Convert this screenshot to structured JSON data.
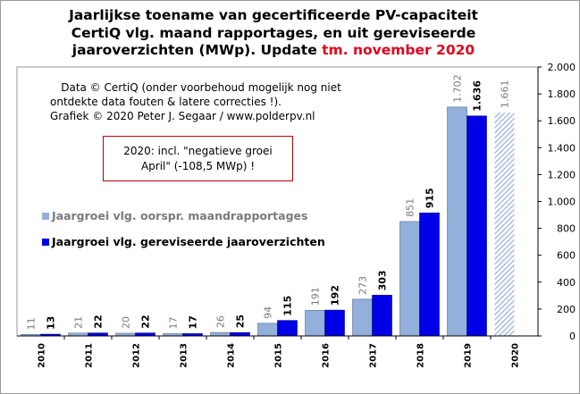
{
  "title": {
    "line1": "Jaarlijkse toename van gecertificeerde PV-capaciteit",
    "line2": "CertiQ vlg. maand rapportages, en uit gereviseerde",
    "line3_black": "jaaroverzichten (MWp). Update ",
    "line3_red": "tm. november 2020"
  },
  "credit": {
    "line1": "Data © CertiQ (onder voorbehoud mogelijk nog niet",
    "line2": "ontdekte data fouten & latere correcties !).",
    "line3": "Grafiek © 2020 Peter J. Segaar / www.polderpv.nl"
  },
  "note": {
    "line1": "2020: incl. \"negatieve groei",
    "line2": "April\" (-108,5 MWp) !"
  },
  "colors": {
    "light_bar": "#93afdb",
    "dark_bar": "#0000e6",
    "frame_red": "#c00000",
    "title_red": "#e3001b"
  },
  "chart_data": {
    "type": "bar",
    "categories": [
      "2010",
      "2011",
      "2012",
      "2013",
      "2014",
      "2015",
      "2016",
      "2017",
      "2018",
      "2019",
      "2020"
    ],
    "series": [
      {
        "name": "Jaargroei vlg. oorspr. maandrapportages",
        "values": [
          11,
          21,
          20,
          17,
          26,
          94,
          191,
          273,
          851,
          1702,
          1661
        ],
        "labels": [
          "11",
          "21",
          "20",
          "17",
          "26",
          "94",
          "191",
          "273",
          "851",
          "1.702",
          "1.661"
        ]
      },
      {
        "name": "Jaargroei vlg. gereviseerde jaaroverzichten",
        "values": [
          13,
          22,
          22,
          17,
          25,
          115,
          192,
          303,
          915,
          1636,
          null
        ],
        "labels": [
          "13",
          "22",
          "22",
          "17",
          "25",
          "115",
          "192",
          "303",
          "915",
          "1.636",
          ""
        ]
      }
    ],
    "ylim": [
      0,
      2000
    ],
    "yticks": [
      0,
      200,
      400,
      600,
      800,
      1000,
      1200,
      1400,
      1600,
      1800,
      2000
    ],
    "ytick_labels": [
      "0",
      "200",
      "400",
      "600",
      "800",
      "1.000",
      "1.200",
      "1.400",
      "1.600",
      "1.800",
      "2.000"
    ],
    "y_axis_side": "right",
    "grid": false,
    "legend_placement": "left",
    "hatched_category": "2020"
  }
}
